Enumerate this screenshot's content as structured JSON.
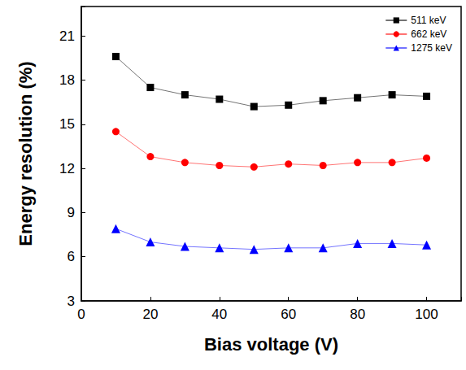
{
  "chart_data": {
    "type": "line",
    "x_label": "Bias voltage (V)",
    "y_label": "Energy resolution (%)",
    "x": [
      10,
      20,
      30,
      40,
      50,
      60,
      70,
      80,
      90,
      100
    ],
    "series": [
      {
        "name": "511 keV",
        "color": "#000000",
        "marker": "square",
        "values": [
          19.6,
          17.5,
          17.0,
          16.7,
          16.2,
          16.3,
          16.6,
          16.8,
          17.0,
          16.9
        ]
      },
      {
        "name": "662 keV",
        "color": "#ff0000",
        "marker": "circle",
        "values": [
          14.5,
          12.8,
          12.4,
          12.2,
          12.1,
          12.3,
          12.2,
          12.4,
          12.4,
          12.7
        ]
      },
      {
        "name": "1275 keV",
        "color": "#0000ff",
        "marker": "triangle",
        "values": [
          7.9,
          7.0,
          6.7,
          6.6,
          6.5,
          6.6,
          6.6,
          6.9,
          6.9,
          6.8
        ]
      }
    ],
    "xlim": [
      0,
      110
    ],
    "xticks": [
      0,
      20,
      40,
      60,
      80,
      100
    ],
    "ylim": [
      3,
      23
    ],
    "yticks": [
      3,
      6,
      9,
      12,
      15,
      18,
      21
    ],
    "grid": false,
    "legend": "upper right"
  }
}
